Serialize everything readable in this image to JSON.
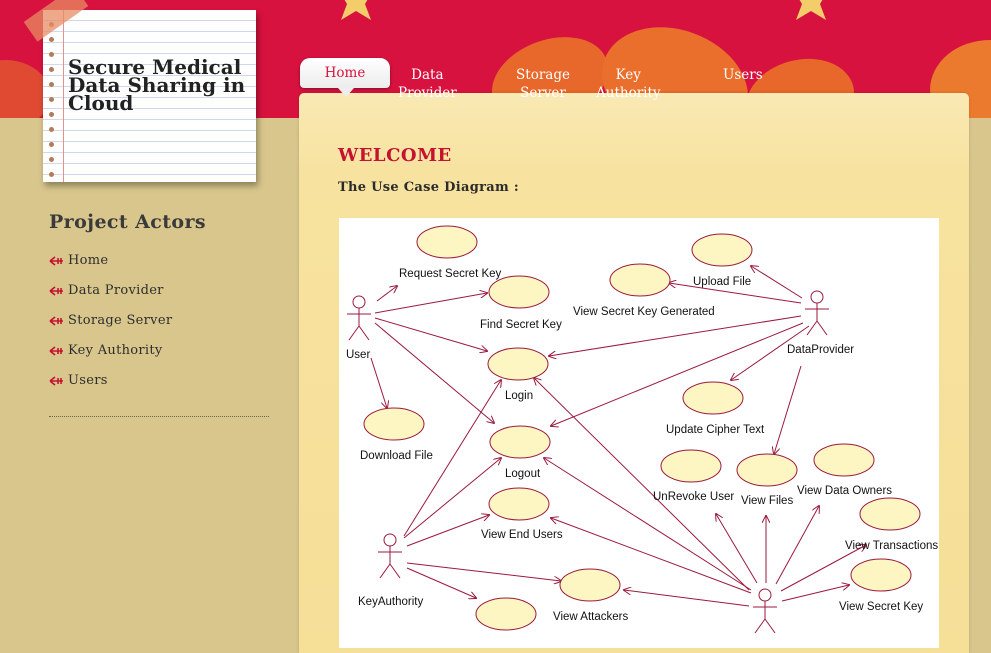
{
  "site": {
    "title": "Secure Medical Data Sharing in Cloud"
  },
  "nav": {
    "items": [
      {
        "label": "Home",
        "active": true
      },
      {
        "label": "Data Provider"
      },
      {
        "label": "Storage Server"
      },
      {
        "label": "Key Authority"
      },
      {
        "label": "Users"
      }
    ]
  },
  "main": {
    "heading": "WELCOME",
    "subheading": "The Use Case Diagram :"
  },
  "diagram": {
    "actors": [
      "User",
      "DataProvider",
      "KeyAuthority"
    ],
    "use_cases": [
      "Request Secret Key",
      "Find Secret Key",
      "Login",
      "Download File",
      "Logout",
      "View End Users",
      "View Attackers",
      "Upload File",
      "View Secret Key Generated",
      "Update Cipher Text",
      "UnRevoke User",
      "View Files",
      "View Data Owners",
      "View Transactions",
      "View Secret Key"
    ]
  },
  "sidebar": {
    "heading": "Project Actors",
    "items": [
      "Home",
      "Data Provider",
      "Storage Server",
      "Key Authority",
      "Users"
    ]
  },
  "colors": {
    "banner": "#d8123f",
    "accent": "#c4122f",
    "background": "#d8c68c",
    "panel": "#f7e29f",
    "diagram_line": "#9b1a3c",
    "use_case_fill": "#fdf6c3"
  },
  "icons": {
    "sidebar_bullet": "arrow-bullet-icon"
  }
}
